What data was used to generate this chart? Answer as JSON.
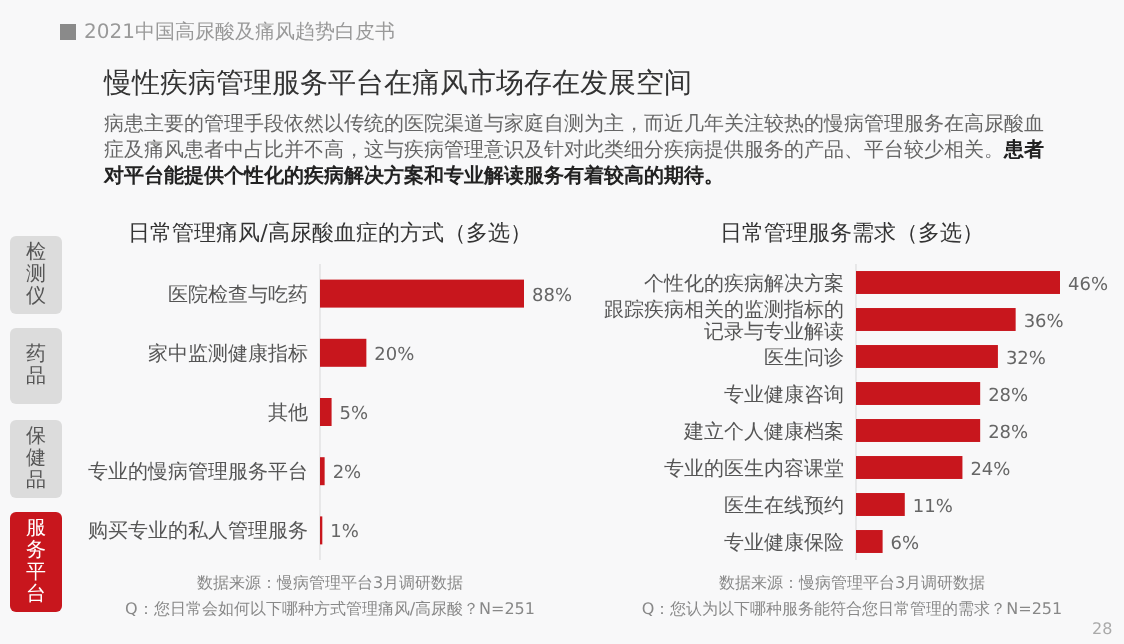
{
  "chart_data": [
    {
      "type": "bar",
      "orientation": "horizontal",
      "title": "日常管理痛风/高尿酸血症的方式（多选）",
      "color": "#c8161d",
      "categories": [
        "医院检查与吃药",
        "家中监测健康指标",
        "其他",
        "专业的慢病管理服务平台",
        "购买专业的私人管理服务"
      ],
      "values": [
        88,
        20,
        5,
        2,
        1
      ],
      "value_labels": [
        "88%",
        "20%",
        "5%",
        "2%",
        "1%"
      ],
      "annotations": [
        "2021中国高尿酸及痛风趋势白皮书",
        "慢性疾病管理服务平台在痛风市场存在发展空间",
        "病患主要的管理手段依然以传统的医院渠道与家庭自测为主，而近几年关注较热的慢病管理服务在高尿酸血症及痛风患者中占比并不高，这与疾病管理意识及针对此类细分疾病提供服务的产品、平台较少相关。**患者对平台能提供个性化的疾病解决方案和专业解读服务有着较高的期待。**",
        "检测仪",
        "药品",
        "保健品",
        "服务平台",
        "数据来源：慢病管理平台3月调研数据",
        "Q：您日常会如何以下哪种方式管理痛风/高尿酸？N=251",
        "28"
      ]
    },
    {
      "type": "bar",
      "orientation": "horizontal",
      "title": "日常管理服务需求（多选）",
      "color": "#c8161d",
      "categories": [
        "个性化的疾病解决方案",
        "跟踪疾病相关的监测指标的记录与专业解读",
        "医生问诊",
        "专业健康咨询",
        "建立个人健康档案",
        "专业的医生内容课堂",
        "医生在线预约",
        "专业健康保险"
      ],
      "values": [
        46,
        36,
        32,
        28,
        28,
        24,
        11,
        6
      ],
      "value_labels": [
        "46%",
        "36%",
        "32%",
        "28%",
        "28%",
        "24%",
        "11%",
        "6%"
      ],
      "annotations": [
        "数据来源：慢病管理平台3月调研数据",
        "Q：您认为以下哪种服务能符合您日常管理的需求？N=251"
      ]
    }
  ]
}
